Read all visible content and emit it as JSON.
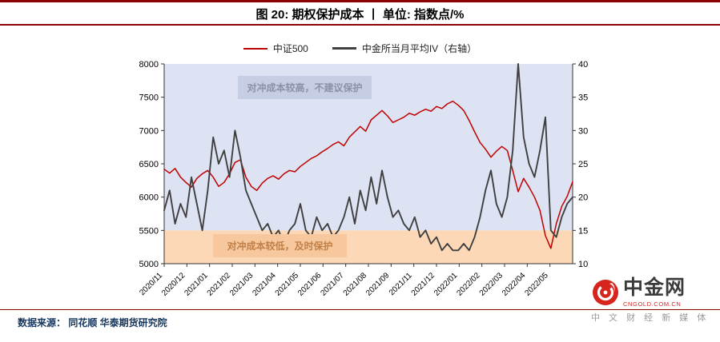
{
  "header": {
    "title": "图 20: 期权保护成本 丨 单位: 指数点/%"
  },
  "legend": [
    {
      "label": "中证500",
      "color": "#c00000"
    },
    {
      "label": "中金所当月平均IV（右轴）",
      "color": "#3f3f3f"
    }
  ],
  "annotations": {
    "high": "对冲成本较高，不建议保护",
    "low": "对冲成本较低，及时保护"
  },
  "footer": {
    "source": "数据来源： 同花顺  华泰期货研究院"
  },
  "logo": {
    "name": "中金网",
    "domain": "CNGOLD.COM.CN",
    "tagline": "中 文 财 经 新 媒 体",
    "brand_color": "#d6251d"
  },
  "chart_data": {
    "type": "line",
    "title": "期权保护成本",
    "unit": "指数点/%",
    "x_labels": [
      "2020/11",
      "2020/12",
      "2021/01",
      "2021/02",
      "2021/03",
      "2021/04",
      "2021/05",
      "2021/06",
      "2021/07",
      "2021/08",
      "2021/09",
      "2021/11",
      "2021/12",
      "2022/01",
      "2022/02",
      "2022/03",
      "2022/04",
      "2022/05"
    ],
    "left_axis": {
      "label": "指数点",
      "min": 5000,
      "max": 8000,
      "ticks": [
        8000,
        7500,
        7000,
        6500,
        6000,
        5500,
        5000
      ]
    },
    "right_axis": {
      "label": "%",
      "min": 10,
      "max": 40,
      "ticks": [
        40,
        35,
        30,
        25,
        20,
        15,
        10
      ]
    },
    "threshold": {
      "left_value": 5500,
      "right_value": 15
    },
    "regions": [
      {
        "name": "high-cost-zone",
        "color": "#dde3f2",
        "range_left": [
          5500,
          8000
        ]
      },
      {
        "name": "low-cost-zone",
        "color": "#fcd8b7",
        "range_left": [
          5000,
          5500
        ]
      }
    ],
    "legend_position": "top-center",
    "grid": false,
    "series": [
      {
        "name": "中证500",
        "axis": "left",
        "color": "#c00000",
        "width": 1.5,
        "values": [
          6420,
          6360,
          6430,
          6300,
          6220,
          6150,
          6280,
          6350,
          6400,
          6300,
          6160,
          6220,
          6350,
          6520,
          6560,
          6300,
          6160,
          6100,
          6210,
          6280,
          6320,
          6270,
          6350,
          6400,
          6380,
          6460,
          6520,
          6580,
          6620,
          6680,
          6730,
          6790,
          6830,
          6770,
          6900,
          6980,
          7060,
          6990,
          7160,
          7230,
          7300,
          7220,
          7120,
          7160,
          7200,
          7260,
          7230,
          7280,
          7320,
          7290,
          7360,
          7330,
          7400,
          7440,
          7380,
          7300,
          7150,
          6980,
          6820,
          6720,
          6600,
          6690,
          6760,
          6700,
          6400,
          6080,
          6280,
          6150,
          6000,
          5800,
          5420,
          5230,
          5600,
          5860,
          6010,
          6230
        ]
      },
      {
        "name": "中金所当月平均IV（右轴）",
        "axis": "right",
        "color": "#3f3f3f",
        "width": 1.9,
        "values": [
          18,
          21,
          16,
          19,
          17,
          23,
          19,
          15,
          21,
          29,
          25,
          27,
          23,
          30,
          26,
          21,
          19,
          17,
          15,
          16,
          14,
          15,
          13,
          15,
          16,
          19,
          15,
          14,
          17,
          15,
          16,
          14,
          15,
          17,
          20,
          16,
          21,
          18,
          23,
          19,
          24,
          20,
          17,
          18,
          16,
          15,
          17,
          14,
          15,
          13,
          14,
          12,
          13,
          12,
          12,
          13,
          12,
          14,
          17,
          21,
          24,
          19,
          17,
          20,
          27,
          40,
          29,
          25,
          23,
          27,
          32,
          15,
          14,
          17,
          19,
          20
        ]
      }
    ]
  }
}
